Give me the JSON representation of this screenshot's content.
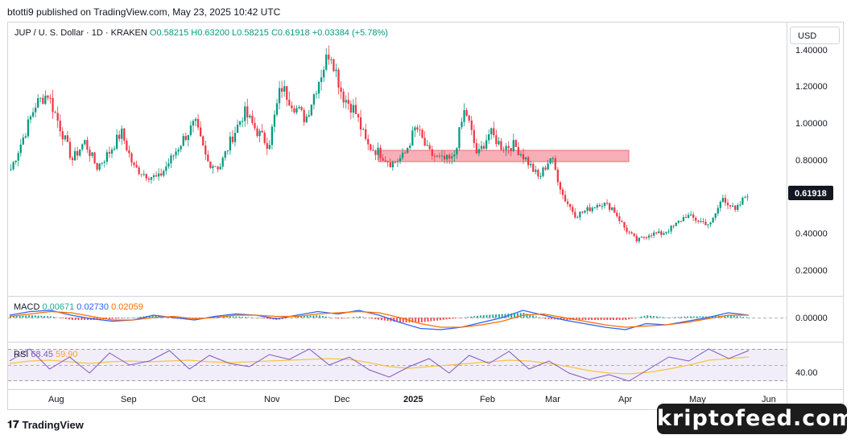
{
  "header": {
    "published_by": "btotti9 published on TradingView.com, May 23, 2025 10:42 UTC"
  },
  "legend": {
    "symbol": "JUP / U. S. Dollar · 1D · KRAKEN",
    "ohlc": "O0.58215  H0.63200  L0.58215  C0.61918  +0.03384 (+5.78%)"
  },
  "currency_label": "USD",
  "macd_legend": {
    "label": "MACD",
    "v1": "0.00671",
    "v2": "0.02730",
    "v3": "0.02059"
  },
  "rsi_legend": {
    "label": "RSI",
    "v1": "68.45",
    "v2": "59.90"
  },
  "footer": {
    "brand": "TradingView"
  },
  "watermark": "kriptofeed.com",
  "colors": {
    "up": "#089981",
    "down": "#f23645",
    "macd": "#2962ff",
    "signal": "#ff6d00",
    "rsi": "#7e57c2",
    "rsi_ma": "#f5c542",
    "zone": "#f7a1aa"
  },
  "chart_data": [
    {
      "type": "candlestick",
      "title": "JUP / U. S. Dollar · 1D · KRAKEN",
      "y_ticks": [
        "1.40000",
        "1.20000",
        "1.00000",
        "0.80000",
        "0.40000",
        "0.20000"
      ],
      "last_price_label": "0.61918",
      "x_ticks": [
        "Aug",
        "Sep",
        "Oct",
        "Nov",
        "Dec",
        "2025",
        "Feb",
        "Mar",
        "Apr",
        "May",
        "Jun"
      ],
      "ylim": [
        0.2,
        1.45
      ],
      "resistance_zone": {
        "low": 0.78,
        "high": 0.85,
        "from": "Dec",
        "to": "Apr"
      },
      "close_path": [
        {
          "x": "Jul",
          "y": 0.75
        },
        {
          "x": "Jul",
          "y": 0.92
        },
        {
          "x": "Jul",
          "y": 1.1
        },
        {
          "x": "Aug",
          "y": 1.16
        },
        {
          "x": "Aug",
          "y": 0.98
        },
        {
          "x": "Aug",
          "y": 0.8
        },
        {
          "x": "Aug",
          "y": 0.9
        },
        {
          "x": "Aug",
          "y": 0.76
        },
        {
          "x": "Sep",
          "y": 0.84
        },
        {
          "x": "Sep",
          "y": 0.95
        },
        {
          "x": "Sep",
          "y": 0.76
        },
        {
          "x": "Sep",
          "y": 0.72
        },
        {
          "x": "Sep",
          "y": 0.7
        },
        {
          "x": "Oct",
          "y": 0.8
        },
        {
          "x": "Oct",
          "y": 0.91
        },
        {
          "x": "Oct",
          "y": 1.0
        },
        {
          "x": "Oct",
          "y": 0.79
        },
        {
          "x": "Oct",
          "y": 0.76
        },
        {
          "x": "Nov",
          "y": 0.92
        },
        {
          "x": "Nov",
          "y": 1.06
        },
        {
          "x": "Nov",
          "y": 0.96
        },
        {
          "x": "Nov",
          "y": 0.88
        },
        {
          "x": "Nov",
          "y": 1.2
        },
        {
          "x": "Dec",
          "y": 1.1
        },
        {
          "x": "Dec",
          "y": 1.02
        },
        {
          "x": "Dec",
          "y": 1.22
        },
        {
          "x": "Dec",
          "y": 1.4
        },
        {
          "x": "Dec",
          "y": 1.15
        },
        {
          "x": "Dec",
          "y": 1.07
        },
        {
          "x": "Dec",
          "y": 0.88
        },
        {
          "x": "Jan",
          "y": 0.84
        },
        {
          "x": "Jan",
          "y": 0.78
        },
        {
          "x": "Jan",
          "y": 0.82
        },
        {
          "x": "Jan",
          "y": 0.98
        },
        {
          "x": "Jan",
          "y": 0.84
        },
        {
          "x": "Jan",
          "y": 0.8
        },
        {
          "x": "Jan",
          "y": 0.8
        },
        {
          "x": "Feb",
          "y": 1.08
        },
        {
          "x": "Feb",
          "y": 0.82
        },
        {
          "x": "Feb",
          "y": 0.95
        },
        {
          "x": "Feb",
          "y": 0.87
        },
        {
          "x": "Feb",
          "y": 0.88
        },
        {
          "x": "Feb",
          "y": 0.8
        },
        {
          "x": "Mar",
          "y": 0.7
        },
        {
          "x": "Mar",
          "y": 0.82
        },
        {
          "x": "Mar",
          "y": 0.6
        },
        {
          "x": "Mar",
          "y": 0.5
        },
        {
          "x": "Mar",
          "y": 0.53
        },
        {
          "x": "Mar",
          "y": 0.57
        },
        {
          "x": "Apr",
          "y": 0.54
        },
        {
          "x": "Apr",
          "y": 0.43
        },
        {
          "x": "Apr",
          "y": 0.36
        },
        {
          "x": "Apr",
          "y": 0.4
        },
        {
          "x": "Apr",
          "y": 0.4
        },
        {
          "x": "Apr",
          "y": 0.44
        },
        {
          "x": "May",
          "y": 0.5
        },
        {
          "x": "May",
          "y": 0.47
        },
        {
          "x": "May",
          "y": 0.45
        },
        {
          "x": "May",
          "y": 0.6
        },
        {
          "x": "May",
          "y": 0.52
        },
        {
          "x": "May",
          "y": 0.62
        }
      ]
    },
    {
      "type": "line",
      "title": "MACD",
      "y_ticks": [
        "0.00000"
      ],
      "series": [
        {
          "name": "MACD",
          "values": [
            0.02,
            0.05,
            0.06,
            0.02,
            -0.01,
            -0.03,
            -0.02,
            0.02,
            0.0,
            -0.02,
            0.01,
            0.03,
            0.02,
            -0.01,
            0.02,
            0.05,
            0.03,
            0.06,
            0.02,
            -0.04,
            -0.09,
            -0.1,
            -0.08,
            -0.04,
            0.0,
            0.06,
            0.02,
            -0.02,
            -0.05,
            -0.08,
            -0.1,
            -0.05,
            -0.06,
            -0.03,
            0.0,
            0.04,
            0.02
          ]
        },
        {
          "name": "Signal",
          "values": [
            0.01,
            0.03,
            0.05,
            0.04,
            0.01,
            -0.02,
            -0.02,
            0.0,
            0.01,
            -0.01,
            0.0,
            0.02,
            0.02,
            0.01,
            0.01,
            0.03,
            0.04,
            0.05,
            0.04,
            0.0,
            -0.05,
            -0.08,
            -0.08,
            -0.06,
            -0.03,
            0.02,
            0.03,
            0.0,
            -0.03,
            -0.06,
            -0.08,
            -0.07,
            -0.06,
            -0.04,
            -0.01,
            0.02,
            0.02
          ]
        }
      ]
    },
    {
      "type": "line",
      "title": "RSI",
      "y_ticks": [
        "40.00"
      ],
      "series": [
        {
          "name": "RSI",
          "values": [
            55,
            70,
            45,
            60,
            40,
            65,
            50,
            55,
            68,
            45,
            62,
            52,
            48,
            63,
            57,
            70,
            50,
            60,
            44,
            35,
            48,
            58,
            40,
            62,
            52,
            67,
            45,
            55,
            40,
            32,
            38,
            30,
            45,
            60,
            55,
            70,
            58,
            68
          ]
        },
        {
          "name": "RSI-based MA",
          "values": [
            52,
            55,
            56,
            54,
            52,
            54,
            55,
            54,
            55,
            56,
            54,
            53,
            54,
            55,
            56,
            57,
            58,
            57,
            53,
            48,
            46,
            48,
            50,
            52,
            54,
            56,
            55,
            52,
            48,
            43,
            40,
            39,
            41,
            45,
            50,
            56,
            58,
            60
          ]
        }
      ]
    }
  ]
}
